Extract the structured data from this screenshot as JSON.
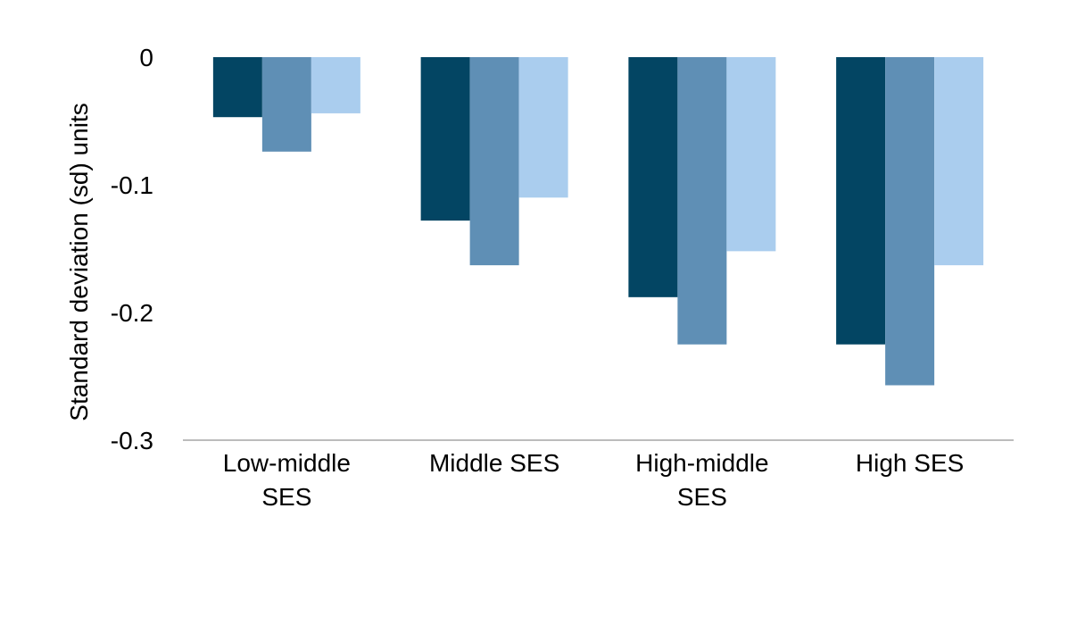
{
  "chart_data": {
    "type": "bar",
    "title": "",
    "xlabel": "",
    "ylabel": "Standard deviation (sd) units",
    "ylim": [
      -0.3,
      0
    ],
    "yticks": [
      0,
      -0.1,
      -0.2,
      -0.3
    ],
    "ytick_labels": [
      "0",
      "-0.1",
      "-0.2",
      "-0.3"
    ],
    "grid": false,
    "legend": "none",
    "categories": [
      [
        "Low-middle",
        "SES"
      ],
      [
        "Middle SES"
      ],
      [
        "High-middle",
        "SES"
      ],
      [
        "High SES"
      ]
    ],
    "series": [
      {
        "color": "#034563",
        "values": [
          -0.047,
          -0.128,
          -0.188,
          -0.225
        ]
      },
      {
        "color": "#5f8fb5",
        "values": [
          -0.074,
          -0.163,
          -0.225,
          -0.257
        ]
      },
      {
        "color": "#aacdee",
        "values": [
          -0.044,
          -0.11,
          -0.152,
          -0.163
        ]
      }
    ],
    "axis_line_color": "#a6a6a6"
  }
}
